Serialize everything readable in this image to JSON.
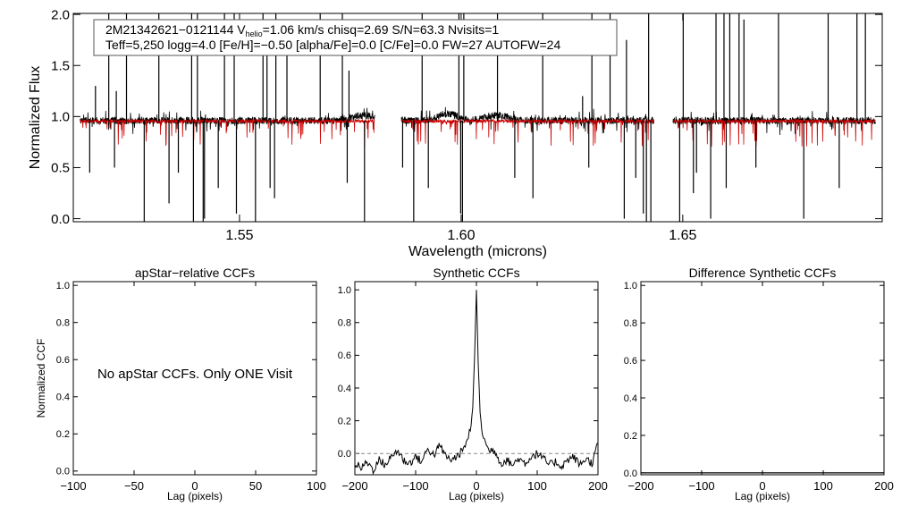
{
  "figure": {
    "colors": {
      "observed": "#000000",
      "model": "#cc0000",
      "axes": "#000000",
      "dashed": "#888888"
    }
  },
  "chart_data": [
    {
      "type": "line",
      "id": "spectrum",
      "xlabel": "Wavelength (microns)",
      "ylabel": "Normalized Flux",
      "xlim": [
        1.5125,
        1.695
      ],
      "ylim": [
        -0.03,
        2.01
      ],
      "x_ticks": [
        1.55,
        1.6,
        1.65
      ],
      "x_tick_labels": [
        "1.55",
        "1.60",
        "1.65"
      ],
      "y_ticks": [
        0.0,
        0.5,
        1.0,
        1.5,
        2.0
      ],
      "y_tick_labels": [
        "0.0",
        "0.5",
        "1.0",
        "1.5",
        "2.0"
      ],
      "annotation": {
        "line1_pre": "2M21342621−0121144  V",
        "line1_sub": "helio",
        "line1_post": "=1.06 km/s  chisq=2.69  S/N=63.3  Nvisits=1",
        "line2": "Teff=5,250 logg=4.0 [Fe/H]=−0.50 [alpha/Fe]=0.0 [C/Fe]=0.0 FW=27 AUTOFW=24"
      },
      "chips": [
        [
          1.514,
          1.5805
        ],
        [
          1.5865,
          1.6435
        ],
        [
          1.6478,
          1.6935
        ]
      ],
      "series": [
        {
          "role": "observed",
          "baseline": 0.96,
          "bumps": [
            [
              1.578,
              0.05,
              0.004
            ],
            [
              1.597,
              0.07,
              0.003
            ],
            [
              1.608,
              0.05,
              0.004
            ]
          ]
        },
        {
          "role": "model",
          "baseline": 0.955
        }
      ],
      "spikes": [
        1.5175,
        1.5205,
        1.5222,
        1.5245,
        1.5318,
        1.5392,
        1.5405,
        1.5466,
        1.5488,
        1.5553,
        1.5562,
        1.5582,
        1.5607,
        1.5682,
        1.5732,
        1.5747,
        1.5912,
        1.5995,
        1.6006,
        1.6082,
        1.6184,
        1.6274,
        1.6295,
        1.6336,
        1.6373,
        1.6423,
        1.6501,
        1.6575,
        1.6593,
        1.6606,
        1.6627,
        1.6638,
        1.6716,
        1.6828,
        1.6893,
        1.6912
      ],
      "spike_heights": [
        1.3,
        2.1,
        1.25,
        2.1,
        2.1,
        2.1,
        2.1,
        2.1,
        2.1,
        2.1,
        1.75,
        2.1,
        1.6,
        2.1,
        2.1,
        1.45,
        2.1,
        2.1,
        2.1,
        2.1,
        2.1,
        1.2,
        2.1,
        2.1,
        1.75,
        2.1,
        2.1,
        2.1,
        2.1,
        2.1,
        2.1,
        1.95,
        2.1,
        2.1,
        2.1,
        2.1
      ],
      "dips": [
        1.5162,
        1.5218,
        1.5285,
        1.5341,
        1.5362,
        1.5396,
        1.5418,
        1.5421,
        1.5452,
        1.5493,
        1.5536,
        1.5569,
        1.5579,
        1.5743,
        1.5782,
        1.5868,
        1.5893,
        1.5926,
        1.5999,
        1.6003,
        1.6121,
        1.6162,
        1.6288,
        1.6368,
        1.6394,
        1.6411,
        1.6418,
        1.6428,
        1.6493,
        1.6524,
        1.6531,
        1.6563,
        1.6598,
        1.6665,
        1.6773,
        1.6853
      ],
      "dip_depths": [
        0.45,
        0.5,
        -0.1,
        0.15,
        0.45,
        -0.1,
        -0.1,
        0.0,
        0.3,
        0.05,
        -0.1,
        0.3,
        0.2,
        0.35,
        -0.1,
        0.5,
        -0.1,
        0.3,
        0.05,
        -0.1,
        0.4,
        0.2,
        0.5,
        0.0,
        0.4,
        0.05,
        -0.1,
        -0.1,
        -0.1,
        0.25,
        0.45,
        0.0,
        0.3,
        0.5,
        0.0,
        0.3
      ]
    },
    {
      "type": "text",
      "id": "apstar",
      "title": "apStar−relative CCFs",
      "xlabel": "Lag (pixels)",
      "ylabel": "Normalized CCF",
      "xlim": [
        -100,
        100
      ],
      "ylim": [
        -0.02,
        1.02
      ],
      "x_ticks": [
        -100,
        -50,
        0,
        50,
        100
      ],
      "x_tick_labels": [
        "−100",
        "−50",
        "0",
        "50",
        "100"
      ],
      "y_ticks": [
        0.0,
        0.2,
        0.4,
        0.6,
        0.8,
        1.0
      ],
      "y_tick_labels": [
        "0.0",
        "0.2",
        "0.4",
        "0.6",
        "0.8",
        "1.0"
      ],
      "message": "No apStar CCFs.  Only ONE Visit"
    },
    {
      "type": "line",
      "id": "synthetic",
      "title": "Synthetic CCFs",
      "xlabel": "Lag (pixels)",
      "xlim": [
        -200,
        200
      ],
      "ylim": [
        -0.13,
        1.05
      ],
      "x_ticks": [
        -200,
        -100,
        0,
        100,
        200
      ],
      "x_tick_labels": [
        "−200",
        "−100",
        "0",
        "100",
        "200"
      ],
      "y_ticks": [
        0.0,
        0.2,
        0.4,
        0.6,
        0.8,
        1.0
      ],
      "y_tick_labels": [
        "0.0",
        "0.2",
        "0.4",
        "0.6",
        "0.8",
        "1.0"
      ],
      "zero_line": 0.0,
      "x": [
        -200,
        -190,
        -180,
        -170,
        -160,
        -150,
        -140,
        -130,
        -120,
        -110,
        -100,
        -90,
        -80,
        -70,
        -60,
        -50,
        -40,
        -30,
        -20,
        -15,
        -10,
        -6,
        -3,
        0,
        3,
        6,
        10,
        15,
        20,
        30,
        40,
        50,
        60,
        70,
        80,
        90,
        100,
        110,
        120,
        130,
        140,
        150,
        160,
        170,
        180,
        190,
        200
      ],
      "y": [
        -0.06,
        -0.09,
        -0.05,
        -0.1,
        -0.04,
        -0.07,
        -0.02,
        0.02,
        -0.04,
        -0.06,
        -0.02,
        -0.05,
        0.03,
        -0.01,
        0.05,
        -0.02,
        -0.04,
        -0.01,
        0.03,
        0.09,
        0.14,
        0.28,
        0.6,
        1.0,
        0.55,
        0.25,
        0.12,
        0.06,
        0.02,
        0.02,
        -0.06,
        -0.04,
        -0.07,
        -0.03,
        -0.06,
        -0.02,
        0.0,
        -0.03,
        -0.07,
        -0.05,
        -0.08,
        -0.04,
        -0.02,
        -0.07,
        -0.03,
        -0.06,
        0.06
      ]
    },
    {
      "type": "line",
      "id": "difference",
      "title": "Difference Synthetic CCFs",
      "xlabel": "Lag (pixels)",
      "xlim": [
        -200,
        200
      ],
      "ylim": [
        -0.01,
        1.02
      ],
      "x_ticks": [
        -200,
        -100,
        0,
        100,
        200
      ],
      "x_tick_labels": [
        "−200",
        "−100",
        "0",
        "100",
        "200"
      ],
      "y_ticks": [
        0.0,
        0.2,
        0.4,
        0.6,
        0.8,
        1.0
      ],
      "y_tick_labels": [
        "0.0",
        "0.2",
        "0.4",
        "0.6",
        "0.8",
        "1.0"
      ],
      "x": [
        -200,
        200
      ],
      "y": [
        0.0,
        0.0
      ]
    }
  ]
}
